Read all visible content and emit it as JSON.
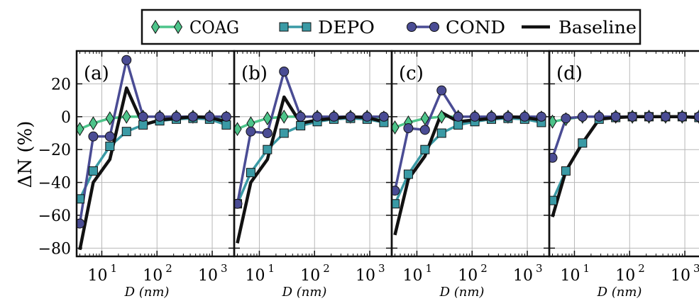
{
  "chart_data": {
    "type": "line",
    "xscale": "log",
    "xlabel": "D   (nm)",
    "ylabel": "ΔN (%)",
    "xlim": [
      3.5,
      2500
    ],
    "ylim": [
      -85,
      40
    ],
    "grid": true,
    "legend_position": "top",
    "yticks": [
      20,
      0,
      -20,
      -40,
      -60,
      -80
    ],
    "xtick_labels": [
      "10",
      "10",
      "10"
    ],
    "xtick_exponents": [
      "1",
      "2",
      "3"
    ],
    "x": [
      4,
      7,
      14,
      28,
      56,
      112,
      224,
      448,
      896,
      1800
    ],
    "legend": [
      {
        "name": "COAG",
        "color": "#4dc48a",
        "marker": "diamond"
      },
      {
        "name": "DEPO",
        "color": "#3a9aa5",
        "marker": "square"
      },
      {
        "name": "COND",
        "color": "#4a4c94",
        "marker": "circle"
      },
      {
        "name": "Baseline",
        "color": "#111111",
        "marker": "none"
      }
    ],
    "panels": [
      {
        "label": "(a)",
        "series": [
          {
            "name": "COAG",
            "values": [
              -7.5,
              -4,
              -1,
              0,
              0,
              0,
              0,
              0,
              0,
              -0.5
            ]
          },
          {
            "name": "DEPO",
            "values": [
              -50,
              -33,
              -18,
              -9,
              -5,
              -2.5,
              -1.5,
              -1,
              -1.5,
              -5
            ]
          },
          {
            "name": "COND",
            "values": [
              -65,
              -12,
              -12,
              34.5,
              0,
              0,
              0,
              0,
              0,
              0
            ]
          },
          {
            "name": "Baseline",
            "values": [
              -81,
              -40,
              -26,
              17.5,
              -5,
              -2,
              -1,
              0,
              -0.5,
              -3
            ]
          }
        ]
      },
      {
        "label": "(b)",
        "series": [
          {
            "name": "COAG",
            "values": [
              -7.5,
              -4,
              -1,
              0,
              0,
              0,
              0,
              0,
              0,
              -0.5
            ]
          },
          {
            "name": "DEPO",
            "values": [
              -53,
              -34,
              -20,
              -10,
              -5.5,
              -3,
              -1.5,
              -1,
              -1.5,
              -3.5
            ]
          },
          {
            "name": "COND",
            "values": [
              -53,
              -9,
              -10,
              27.5,
              0,
              0,
              0,
              0,
              0,
              0
            ]
          },
          {
            "name": "Baseline",
            "values": [
              -77,
              -40,
              -26,
              12,
              -4,
              -2,
              -1,
              0,
              -0.5,
              -3
            ]
          }
        ]
      },
      {
        "label": "(c)",
        "series": [
          {
            "name": "COAG",
            "values": [
              -6.5,
              -3.5,
              -1,
              0,
              0,
              0,
              0,
              0,
              0,
              -0.5
            ]
          },
          {
            "name": "DEPO",
            "values": [
              -53,
              -35,
              -20,
              -10,
              -5,
              -3,
              -1.5,
              -1,
              -1.5,
              -3.5
            ]
          },
          {
            "name": "COND",
            "values": [
              -45,
              -7,
              -8,
              16,
              0,
              0,
              0,
              0,
              0,
              0
            ]
          },
          {
            "name": "Baseline",
            "values": [
              -72,
              -38,
              -24,
              2.5,
              -3,
              -2,
              -1,
              0,
              -0.5,
              -2
            ]
          }
        ]
      },
      {
        "label": "(d)",
        "series": [
          {
            "name": "COAG",
            "values": [
              -3,
              -1.5,
              0,
              0,
              0,
              0,
              0,
              0,
              0,
              0
            ]
          },
          {
            "name": "DEPO",
            "values": [
              -51,
              -33,
              -16,
              -1.5,
              -0.5,
              0,
              0,
              0,
              0,
              -0.5
            ]
          },
          {
            "name": "COND",
            "values": [
              -25,
              -1,
              0,
              0,
              0,
              0,
              0,
              0,
              0,
              0
            ]
          },
          {
            "name": "Baseline",
            "values": [
              -61,
              -33,
              -16,
              -1.5,
              -0.5,
              0,
              0,
              0,
              0,
              -0.5
            ]
          }
        ]
      }
    ]
  }
}
